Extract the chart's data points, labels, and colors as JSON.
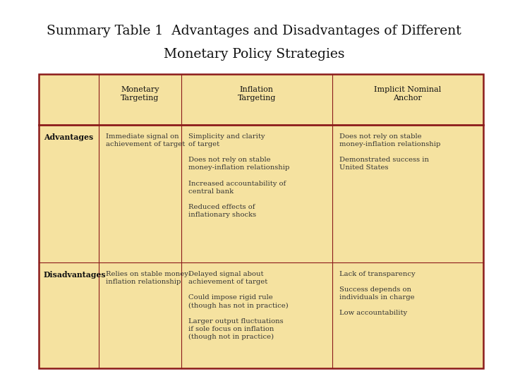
{
  "title_line1": "Summary Table 1  Advantages and Disadvantages of Different",
  "title_line2": "Monetary Policy Strategies",
  "bg_color": "#ffffff",
  "table_bg": "#f5e2a0",
  "border_color": "#8b1a1a",
  "col_headers": [
    "",
    "Monetary\nTargeting",
    "Inflation\nTargeting",
    "Implicit Nominal\nAnchor"
  ],
  "advantages_label": "Advantages",
  "disadvantages_label": "Disadvantages",
  "adv_monetary": "Immediate signal on\nachievement of target",
  "adv_inflation": "Simplicity and clarity\nof target\n\nDoes not rely on stable\nmoney-inflation relationship\n\nIncreased accountability of\ncentral bank\n\nReduced effects of\ninflationary shocks",
  "adv_implicit": "Does not rely on stable\nmoney-inflation relationship\n\nDemonstrated success in\nUnited States",
  "dis_monetary": "Relies on stable money-\ninflation relationship",
  "dis_inflation": "Delayed signal about\nachievement of target\n\nCould impose rigid rule\n(though has not in practice)\n\nLarger output fluctuations\nif sole focus on inflation\n(though not in practice)",
  "dis_implicit": "Lack of transparency\n\nSuccess depends on\nindividuals in charge\n\nLow accountability",
  "title_fontsize": 13.5,
  "header_fontsize": 8.0,
  "body_fontsize": 7.2,
  "label_fontsize": 7.8
}
